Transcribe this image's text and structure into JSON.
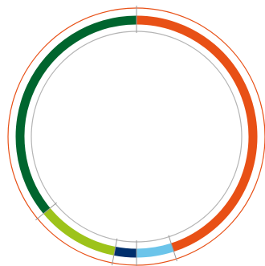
{
  "chart_data": {
    "type": "pie",
    "variant": "donut",
    "segments": [
      {
        "value": 45.0,
        "color": "#E85016"
      },
      {
        "value": 5.0,
        "color": "#6BC4EA"
      },
      {
        "value": 3.0,
        "color": "#002F6C"
      },
      {
        "value": 11.0,
        "color": "#9DC31A"
      },
      {
        "value": 36.0,
        "color": "#00652E"
      }
    ],
    "start_angle_deg": 0,
    "direction": "clockwise",
    "outer_ring_color": "#E85016",
    "inner_ring_color": "#b4b4b4",
    "divider_color": "#9a9a9a",
    "title": "",
    "legend": "none"
  }
}
